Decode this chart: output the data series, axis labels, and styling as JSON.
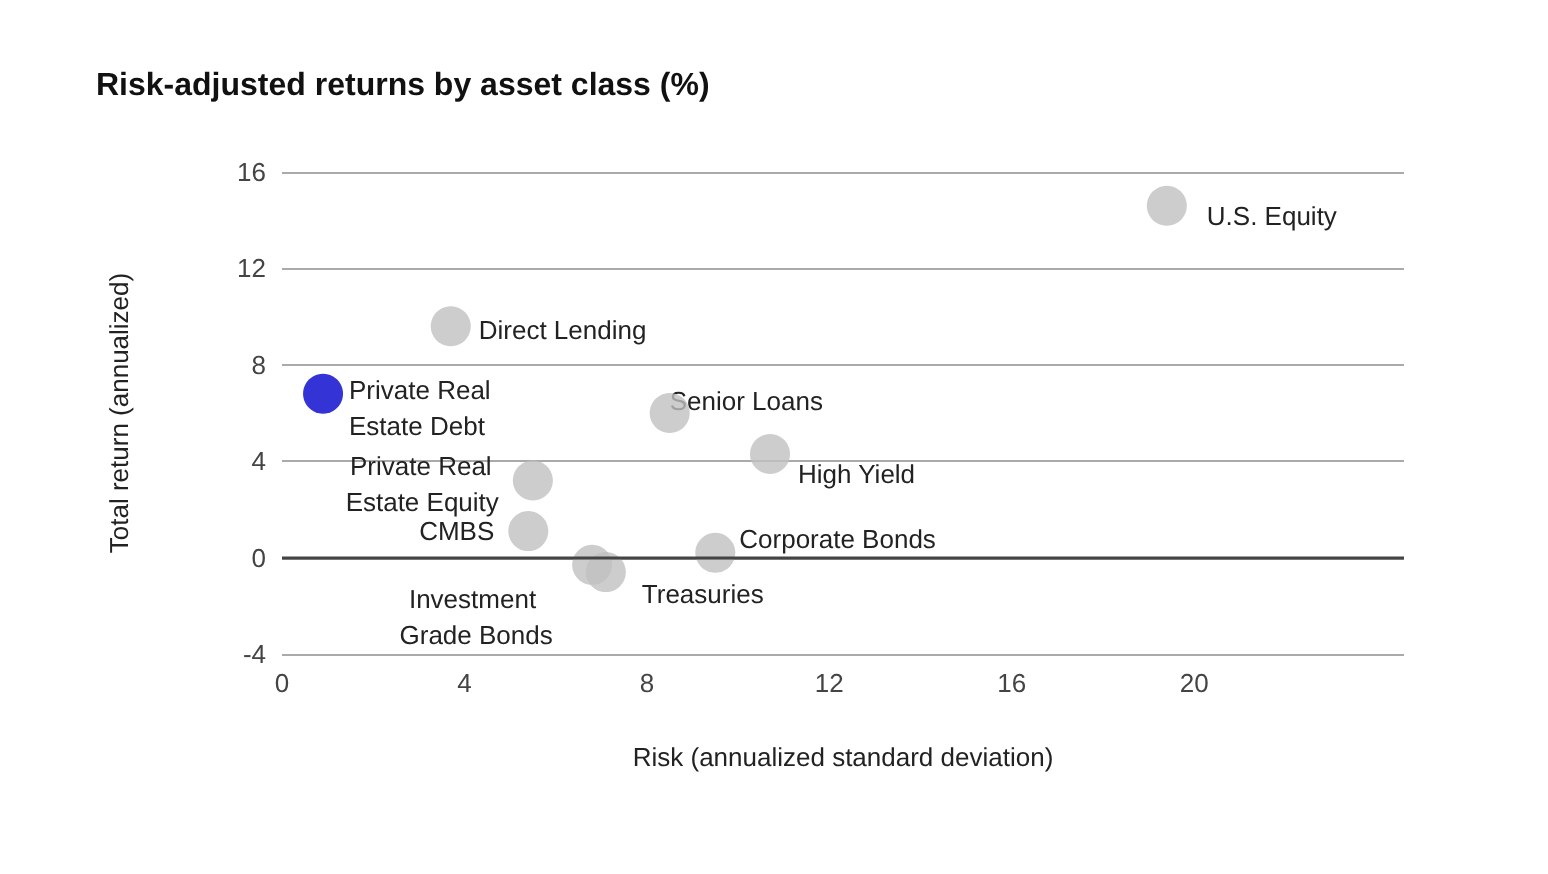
{
  "chart_data": {
    "type": "scatter",
    "title": "Risk-adjusted returns by asset class (%)",
    "xlabel": "Risk (annualized standard deviation)",
    "ylabel": "Total return (annualized)",
    "x": [
      19.4,
      3.7,
      0.9,
      8.5,
      10.7,
      5.5,
      5.4,
      9.5,
      6.8,
      7.1
    ],
    "values": [
      14.6,
      9.6,
      6.8,
      6.0,
      4.3,
      3.2,
      1.1,
      0.2,
      -0.3,
      -0.6
    ],
    "colors": [
      "#c0c0c0",
      "#c0c0c0",
      "#0000cc",
      "#c0c0c0",
      "#c0c0c0",
      "#c0c0c0",
      "#c0c0c0",
      "#c0c0c0",
      "#c0c0c0",
      "#c0c0c0"
    ],
    "annotations": [
      {
        "text": "U.S. Equity",
        "x": 19.4,
        "y": 14.6
      },
      {
        "text": "Direct Lending",
        "x": 3.7,
        "y": 9.6
      },
      {
        "text": "Private Real Estate Debt",
        "x": 0.9,
        "y": 6.8
      },
      {
        "text": "Senior Loans",
        "x": 8.5,
        "y": 6.0
      },
      {
        "text": "High Yield",
        "x": 10.7,
        "y": 4.3
      },
      {
        "text": "Private Real Estate Equity",
        "x": 5.5,
        "y": 3.2
      },
      {
        "text": "CMBS",
        "x": 5.4,
        "y": 1.1
      },
      {
        "text": "Corporate Bonds",
        "x": 9.5,
        "y": 0.2
      },
      {
        "text": "Investment Grade Bonds",
        "x": 6.8,
        "y": -0.3
      },
      {
        "text": "Treasuries",
        "x": 7.1,
        "y": -0.6
      }
    ],
    "xlim": [
      0,
      24.6
    ],
    "xticks": [
      0,
      4,
      8,
      12,
      16,
      20
    ],
    "ylim": [
      -4,
      16
    ],
    "yticks": [
      -4,
      0,
      4,
      8,
      12,
      16
    ],
    "grid": "y",
    "marker": "circle"
  }
}
